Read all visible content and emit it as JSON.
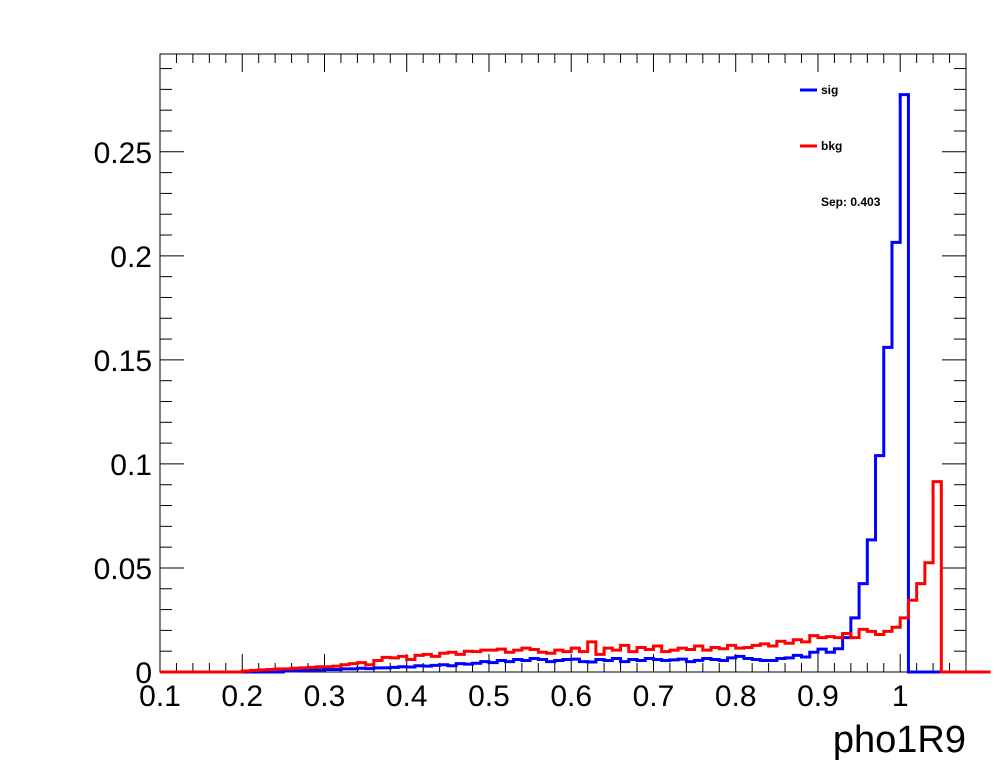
{
  "chart_data": {
    "type": "histogram-step",
    "xlabel": "pho1R9",
    "ylabel": "",
    "xlim": [
      0.1,
      1.08
    ],
    "ylim": [
      0,
      0.297
    ],
    "x_ticks": [
      "0.1",
      "0.2",
      "0.3",
      "0.4",
      "0.5",
      "0.6",
      "0.7",
      "0.8",
      "0.9",
      "1"
    ],
    "y_ticks": [
      "0",
      "0.05",
      "0.1",
      "0.15",
      "0.2",
      "0.25"
    ],
    "bin_start": 0.1,
    "bin_width": 0.01,
    "series": [
      {
        "name": "sig",
        "color": "#0000ff",
        "values": [
          0,
          0,
          0,
          0,
          0,
          0,
          0,
          0,
          0,
          0,
          0,
          0,
          0,
          0,
          0,
          0.0005,
          0.0005,
          0.0008,
          0.001,
          0.001,
          0.0012,
          0.0012,
          0.0015,
          0.0015,
          0.0018,
          0.0016,
          0.002,
          0.002,
          0.0022,
          0.0025,
          0.0024,
          0.003,
          0.0028,
          0.0032,
          0.0035,
          0.003,
          0.004,
          0.0038,
          0.0042,
          0.005,
          0.0045,
          0.0055,
          0.005,
          0.006,
          0.0055,
          0.0065,
          0.006,
          0.005,
          0.0055,
          0.006,
          0.0062,
          0.005,
          0.0048,
          0.006,
          0.0055,
          0.0065,
          0.005,
          0.006,
          0.0055,
          0.0065,
          0.006,
          0.0055,
          0.0058,
          0.0062,
          0.005,
          0.0056,
          0.0065,
          0.006,
          0.0055,
          0.0068,
          0.0075,
          0.0065,
          0.006,
          0.0055,
          0.0055,
          0.0065,
          0.0068,
          0.008,
          0.0072,
          0.0095,
          0.011,
          0.0095,
          0.0112,
          0.0165,
          0.026,
          0.0425,
          0.0635,
          0.104,
          0.156,
          0.2065,
          0.2775,
          0,
          0,
          0,
          0,
          0,
          0,
          0
        ]
      },
      {
        "name": "bkg",
        "color": "#ff0000",
        "values": [
          0,
          0,
          0,
          0,
          0,
          0,
          0,
          0,
          0,
          0,
          0.0005,
          0.0008,
          0.001,
          0.0012,
          0.0015,
          0.0015,
          0.0018,
          0.002,
          0.0022,
          0.0025,
          0.0025,
          0.0028,
          0.0035,
          0.004,
          0.0045,
          0.0035,
          0.0055,
          0.007,
          0.0068,
          0.0075,
          0.006,
          0.008,
          0.0085,
          0.0075,
          0.009,
          0.0095,
          0.0085,
          0.01,
          0.0098,
          0.0105,
          0.0105,
          0.011,
          0.0095,
          0.0105,
          0.0115,
          0.0108,
          0.0095,
          0.009,
          0.0105,
          0.0098,
          0.0115,
          0.0098,
          0.0145,
          0.0085,
          0.0115,
          0.0105,
          0.0128,
          0.0098,
          0.0118,
          0.0108,
          0.0125,
          0.0098,
          0.0105,
          0.0115,
          0.0108,
          0.0125,
          0.0105,
          0.0118,
          0.0112,
          0.0128,
          0.0115,
          0.0118,
          0.0128,
          0.0135,
          0.0125,
          0.0148,
          0.0138,
          0.0155,
          0.0145,
          0.0175,
          0.0165,
          0.017,
          0.0165,
          0.0185,
          0.0165,
          0.0205,
          0.0195,
          0.018,
          0.0195,
          0.0215,
          0.026,
          0.0345,
          0.0425,
          0.0525,
          0.0915,
          0,
          0,
          0,
          0,
          0,
          0,
          0
        ]
      }
    ],
    "annotations": [
      "Sep: 0.403"
    ],
    "legend_position": "top-right",
    "grid": false
  }
}
